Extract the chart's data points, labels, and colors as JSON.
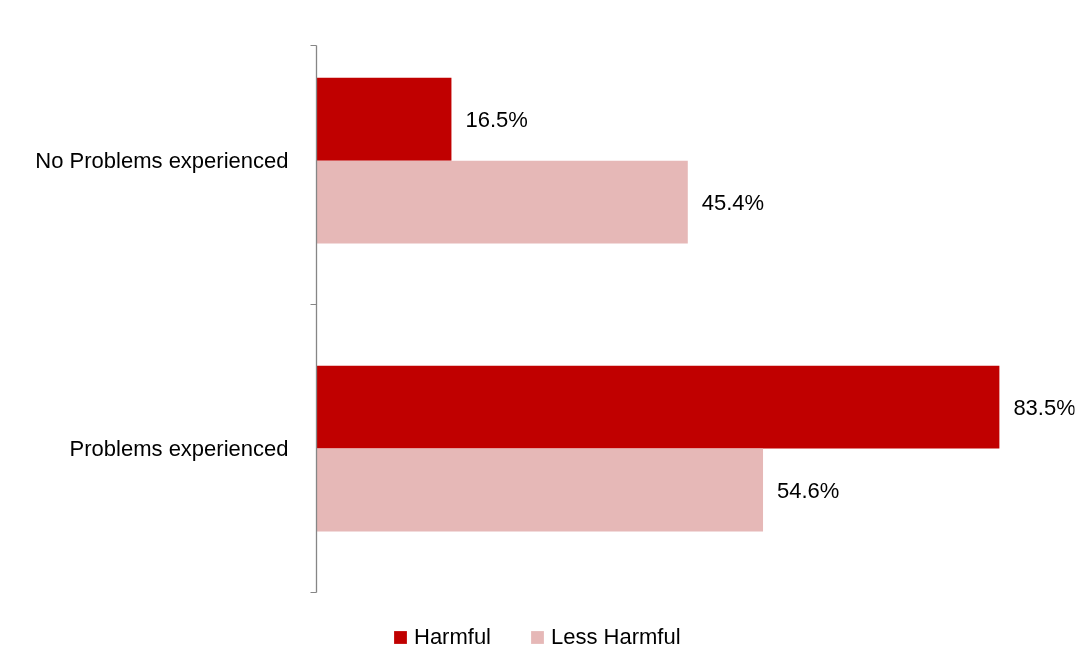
{
  "chart_data": {
    "type": "bar",
    "orientation": "horizontal",
    "categories": [
      "No Problems experienced",
      "Problems experienced"
    ],
    "series": [
      {
        "name": "Harmful",
        "color": "#c00000",
        "values": [
          16.5,
          83.5
        ],
        "value_labels": [
          "16.5%",
          "83.5%"
        ]
      },
      {
        "name": "Less Harmful",
        "color": "#e6b8b7",
        "values": [
          45.4,
          54.6
        ],
        "value_labels": [
          "45.4%",
          "54.6%"
        ]
      }
    ],
    "tick_labels": "y",
    "legend": "bottom"
  }
}
